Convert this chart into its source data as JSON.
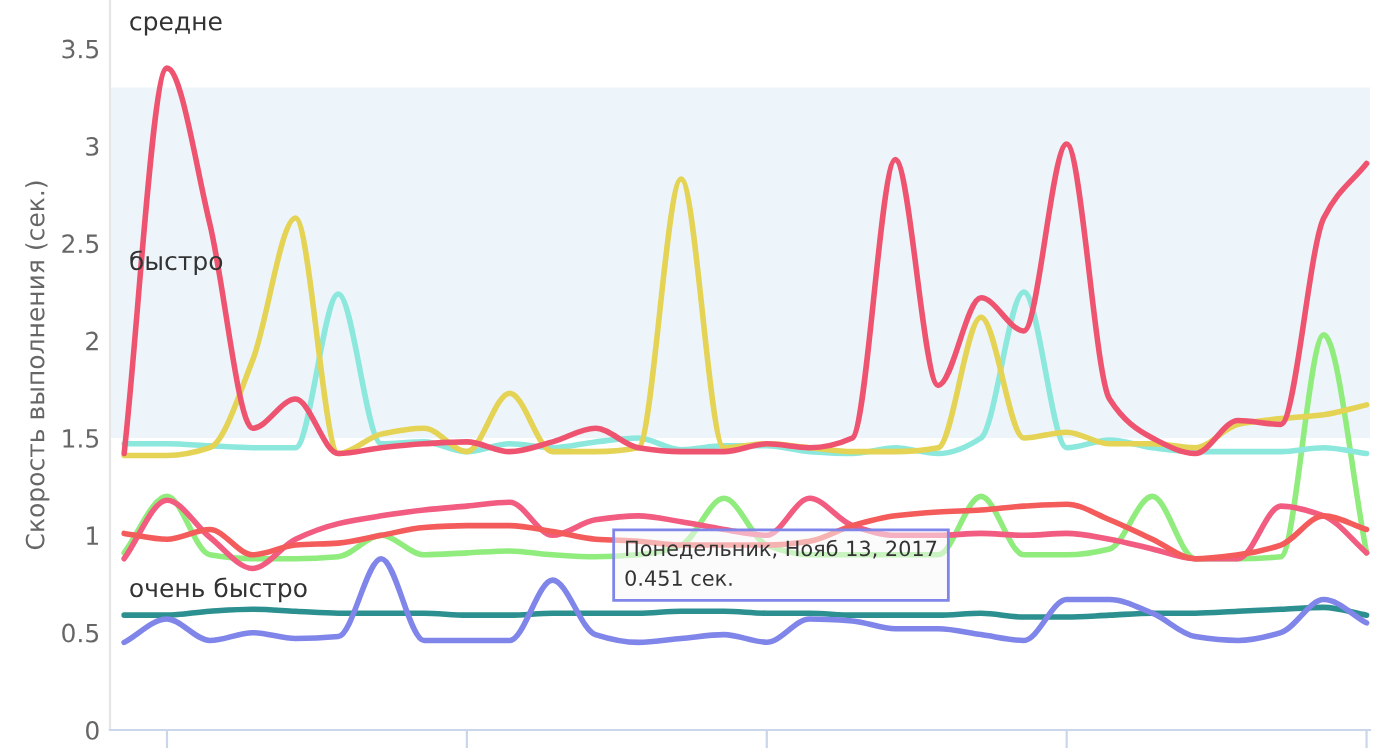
{
  "chart_data": {
    "type": "line",
    "ylabel": "Скорость выполнения (сек.)",
    "categories": [
      null,
      null,
      null,
      null,
      null,
      null,
      null,
      null,
      null,
      null,
      null,
      null,
      null,
      null,
      null,
      null,
      null,
      null,
      null,
      null,
      null,
      null,
      null,
      null,
      null,
      null,
      null,
      null,
      null,
      null
    ],
    "ylim": [
      0,
      3.75
    ],
    "yticks": [
      0,
      0.5,
      1,
      1.5,
      2,
      2.5,
      3,
      3.5
    ],
    "grid": false,
    "legend": false,
    "marker": "none",
    "line_style": "solid",
    "bands": [
      {
        "axis": "y",
        "from": 1.5,
        "to": 3.3,
        "label": "быстро",
        "color": "#edf5fb"
      }
    ],
    "annotations": [
      "средне",
      "очень быстро",
      "Понедельник, Нояб 13, 2017\n0.451 сек."
    ],
    "series": [
      {
        "color": "#2b908f",
        "values": [
          0.59,
          0.59,
          0.61,
          0.62,
          0.61,
          0.6,
          0.6,
          0.6,
          0.59,
          0.59,
          0.6,
          0.6,
          0.6,
          0.61,
          0.61,
          0.6,
          0.6,
          0.59,
          0.59,
          0.59,
          0.6,
          0.58,
          0.58,
          0.59,
          0.6,
          0.6,
          0.61,
          0.62,
          0.63,
          0.59
        ]
      },
      {
        "color": "#8085e9",
        "values": [
          0.45,
          0.57,
          0.46,
          0.5,
          0.47,
          0.48,
          0.88,
          0.46,
          0.46,
          0.46,
          0.77,
          0.49,
          0.45,
          0.47,
          0.49,
          0.451,
          0.57,
          0.56,
          0.52,
          0.52,
          0.49,
          0.46,
          0.67,
          0.67,
          0.6,
          0.48,
          0.46,
          0.5,
          0.67,
          0.55
        ]
      },
      {
        "color": "#90ed7d",
        "values": [
          0.91,
          1.2,
          0.9,
          0.88,
          0.88,
          0.89,
          1.0,
          0.9,
          0.91,
          0.92,
          0.9,
          0.89,
          0.9,
          0.95,
          1.19,
          0.95,
          0.9,
          0.9,
          0.9,
          0.9,
          1.2,
          0.9,
          0.9,
          0.93,
          1.2,
          0.88,
          0.88,
          0.89,
          2.03,
          0.91
        ]
      },
      {
        "color": "#f15c80",
        "values": [
          0.88,
          1.18,
          0.99,
          0.83,
          0.98,
          1.06,
          1.1,
          1.13,
          1.15,
          1.17,
          1.0,
          1.08,
          1.1,
          1.07,
          1.03,
          1.0,
          1.19,
          1.05,
          1.0,
          1.0,
          1.01,
          1.0,
          1.01,
          0.98,
          0.93,
          0.88,
          0.88,
          1.15,
          1.1,
          0.91
        ]
      },
      {
        "color": "#f45b5b",
        "values": [
          1.01,
          0.98,
          1.03,
          0.9,
          0.95,
          0.96,
          1.0,
          1.04,
          1.05,
          1.05,
          1.02,
          0.98,
          0.97,
          0.95,
          0.95,
          0.95,
          0.97,
          1.05,
          1.1,
          1.12,
          1.13,
          1.15,
          1.16,
          1.08,
          0.98,
          0.88,
          0.9,
          0.95,
          1.1,
          1.03
        ]
      },
      {
        "color": "#8ce8dc",
        "values": [
          1.47,
          1.47,
          1.46,
          1.45,
          1.45,
          2.24,
          1.47,
          1.48,
          1.43,
          1.47,
          1.45,
          1.48,
          1.5,
          1.44,
          1.46,
          1.46,
          1.43,
          1.42,
          1.45,
          1.42,
          1.5,
          2.25,
          1.45,
          1.49,
          1.45,
          1.43,
          1.43,
          1.43,
          1.45,
          1.42
        ]
      },
      {
        "color": "#e4d354",
        "values": [
          1.41,
          1.41,
          1.45,
          1.9,
          2.63,
          1.42,
          1.52,
          1.55,
          1.43,
          1.73,
          1.43,
          1.43,
          1.45,
          2.83,
          1.45,
          1.47,
          1.45,
          1.43,
          1.43,
          1.45,
          2.12,
          1.5,
          1.53,
          1.47,
          1.47,
          1.45,
          1.57,
          1.6,
          1.62,
          1.67
        ]
      },
      {
        "color": "#ee5470",
        "values": [
          1.42,
          3.4,
          2.6,
          1.55,
          1.7,
          1.42,
          1.45,
          1.47,
          1.48,
          1.43,
          1.48,
          1.55,
          1.45,
          1.43,
          1.43,
          1.47,
          1.45,
          1.5,
          2.93,
          1.77,
          2.22,
          2.05,
          3.01,
          1.7,
          1.5,
          1.42,
          1.59,
          1.57,
          2.63,
          2.91
        ]
      }
    ]
  }
}
